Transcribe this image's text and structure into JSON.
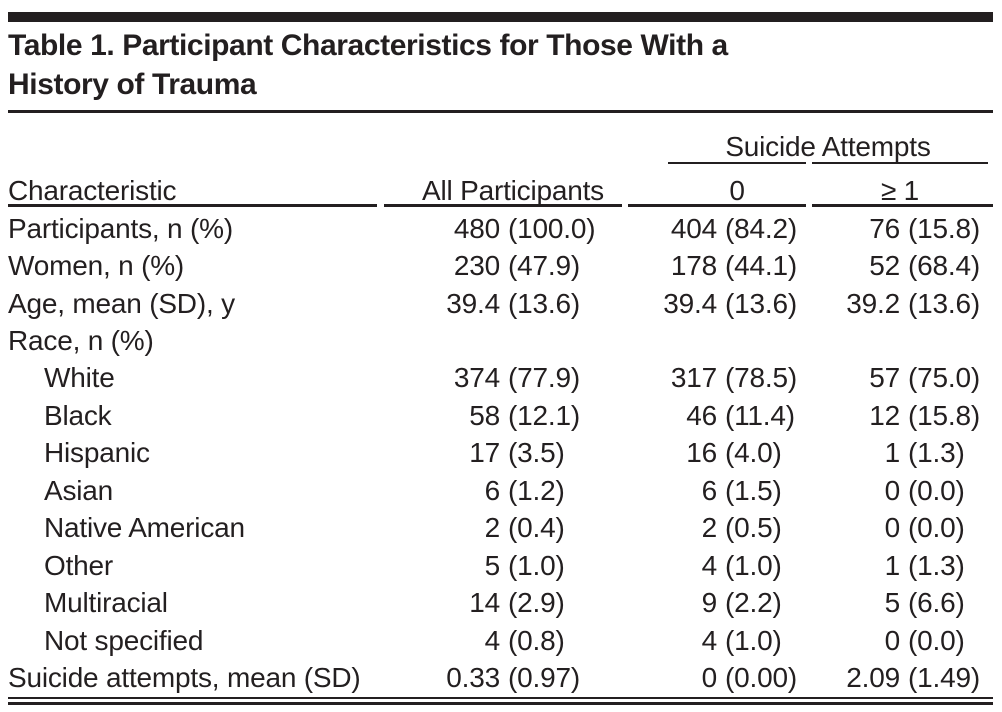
{
  "colors": {
    "ink": "#231F20"
  },
  "title": {
    "line1": "Table 1. Participant Characteristics for Those With a",
    "line2": "History of Trauma"
  },
  "table": {
    "spanner": "Suicide Attempts",
    "columns": [
      "Characteristic",
      "All Participants",
      "0",
      "≥ 1"
    ],
    "rows": [
      {
        "label": "Participants, n (%)",
        "indent": false,
        "all": {
          "n": "480",
          "p": "(100.0)"
        },
        "zero": {
          "n": "404",
          "p": "(84.2)"
        },
        "geq1": {
          "n": "76",
          "p": "(15.8)"
        }
      },
      {
        "label": "Women, n (%)",
        "indent": false,
        "all": {
          "n": "230",
          "p": "(47.9)"
        },
        "zero": {
          "n": "178",
          "p": "(44.1)"
        },
        "geq1": {
          "n": "52",
          "p": "(68.4)"
        }
      },
      {
        "label": "Age, mean (SD), y",
        "indent": false,
        "all": {
          "n": "39.4",
          "p": "(13.6)"
        },
        "zero": {
          "n": "39.4",
          "p": "(13.6)"
        },
        "geq1": {
          "n": "39.2",
          "p": "(13.6)"
        }
      },
      {
        "label": "Race, n (%)",
        "indent": false,
        "all": {
          "n": "",
          "p": ""
        },
        "zero": {
          "n": "",
          "p": ""
        },
        "geq1": {
          "n": "",
          "p": ""
        }
      },
      {
        "label": "White",
        "indent": true,
        "all": {
          "n": "374",
          "p": "(77.9)"
        },
        "zero": {
          "n": "317",
          "p": "(78.5)"
        },
        "geq1": {
          "n": "57",
          "p": "(75.0)"
        }
      },
      {
        "label": "Black",
        "indent": true,
        "all": {
          "n": "58",
          "p": "(12.1)"
        },
        "zero": {
          "n": "46",
          "p": "(11.4)"
        },
        "geq1": {
          "n": "12",
          "p": "(15.8)"
        }
      },
      {
        "label": "Hispanic",
        "indent": true,
        "all": {
          "n": "17",
          "p": "(3.5)"
        },
        "zero": {
          "n": "16",
          "p": "(4.0)"
        },
        "geq1": {
          "n": "1",
          "p": "(1.3)"
        }
      },
      {
        "label": "Asian",
        "indent": true,
        "all": {
          "n": "6",
          "p": "(1.2)"
        },
        "zero": {
          "n": "6",
          "p": "(1.5)"
        },
        "geq1": {
          "n": "0",
          "p": "(0.0)"
        }
      },
      {
        "label": "Native American",
        "indent": true,
        "all": {
          "n": "2",
          "p": "(0.4)"
        },
        "zero": {
          "n": "2",
          "p": "(0.5)"
        },
        "geq1": {
          "n": "0",
          "p": "(0.0)"
        }
      },
      {
        "label": "Other",
        "indent": true,
        "all": {
          "n": "5",
          "p": "(1.0)"
        },
        "zero": {
          "n": "4",
          "p": "(1.0)"
        },
        "geq1": {
          "n": "1",
          "p": "(1.3)"
        }
      },
      {
        "label": "Multiracial",
        "indent": true,
        "all": {
          "n": "14",
          "p": "(2.9)"
        },
        "zero": {
          "n": "9",
          "p": "(2.2)"
        },
        "geq1": {
          "n": "5",
          "p": "(6.6)"
        }
      },
      {
        "label": "Not specified",
        "indent": true,
        "all": {
          "n": "4",
          "p": "(0.8)"
        },
        "zero": {
          "n": "4",
          "p": "(1.0)"
        },
        "geq1": {
          "n": "0",
          "p": "(0.0)"
        }
      },
      {
        "label": "Suicide attempts, mean (SD)",
        "indent": false,
        "all": {
          "n": "0.33",
          "p": "(0.97)"
        },
        "zero": {
          "n": "0",
          "p": "(0.00)"
        },
        "geq1": {
          "n": "2.09",
          "p": "(1.49)"
        }
      }
    ]
  }
}
